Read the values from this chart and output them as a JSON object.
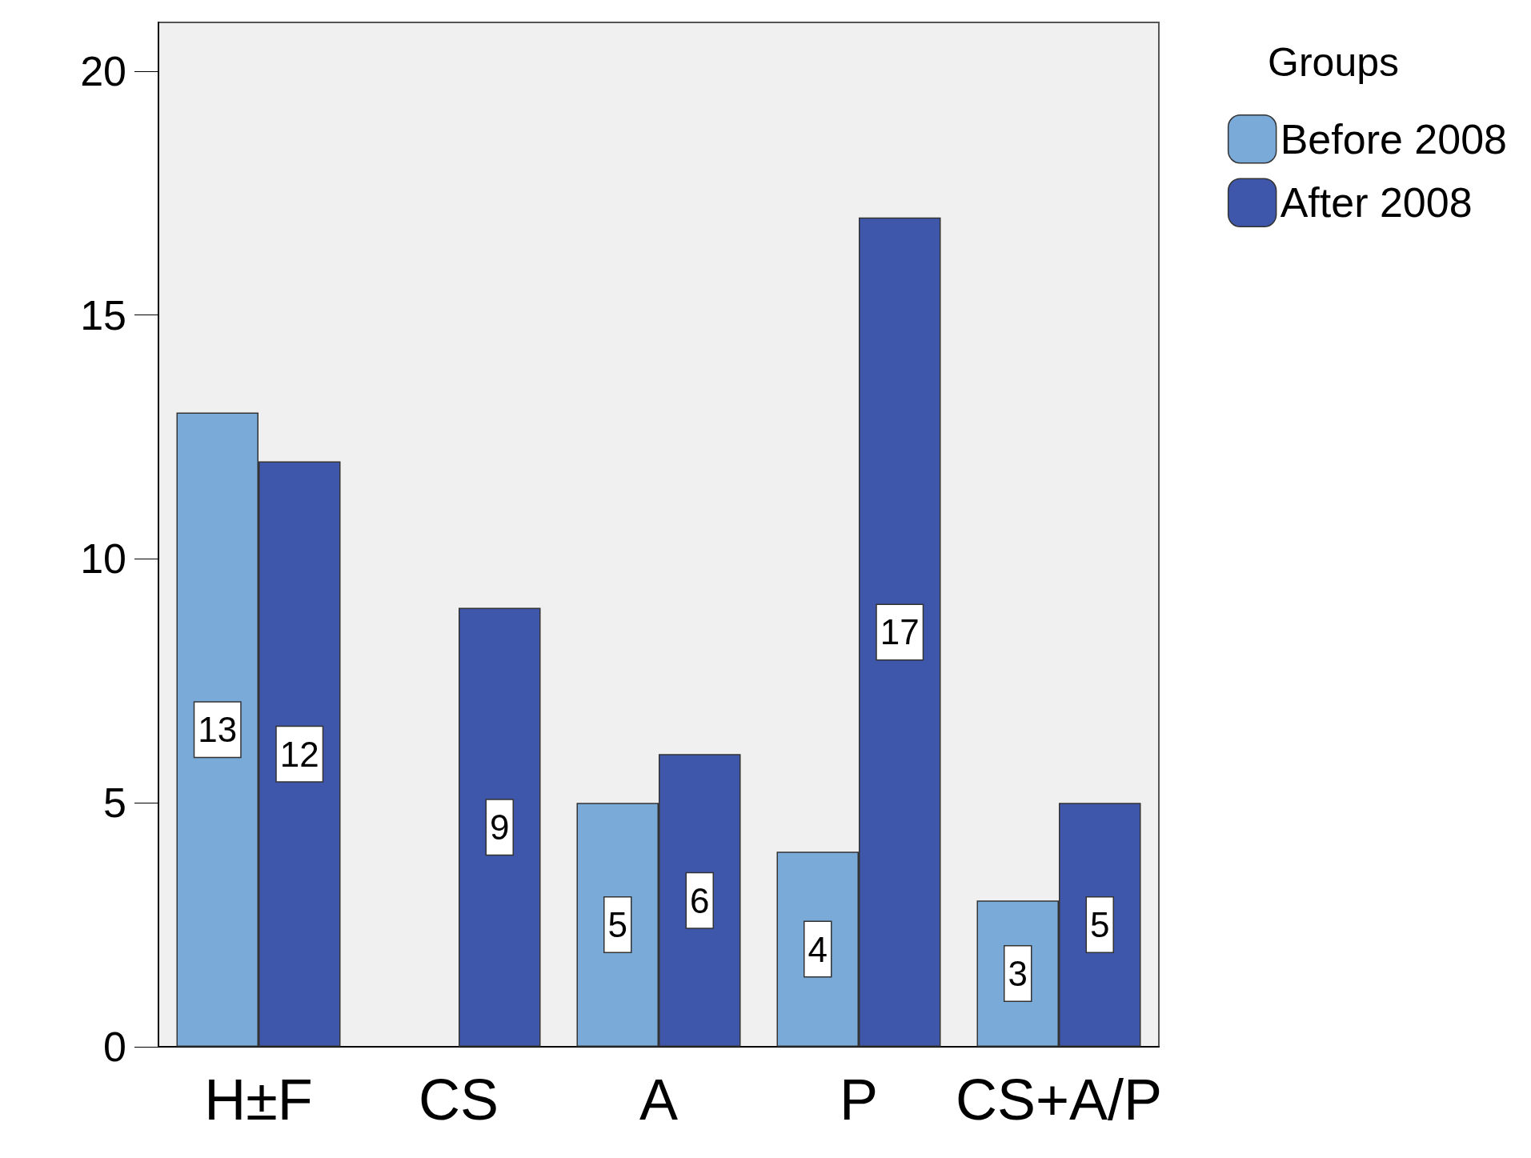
{
  "chart_data": {
    "type": "bar",
    "categories": [
      "H±F",
      "CS",
      "A",
      "P",
      "CS+A/P"
    ],
    "series": [
      {
        "name": "Before 2008",
        "color": "#7aaad8",
        "values": [
          13,
          null,
          5,
          4,
          3
        ]
      },
      {
        "name": "After 2008",
        "color": "#3e57ab",
        "values": [
          12,
          9,
          6,
          17,
          5
        ]
      }
    ],
    "ylim": [
      0,
      21
    ],
    "yticks": [
      0,
      5,
      10,
      15,
      20
    ],
    "legend": "top right",
    "legend_title": "Groups",
    "data_labels": true
  }
}
